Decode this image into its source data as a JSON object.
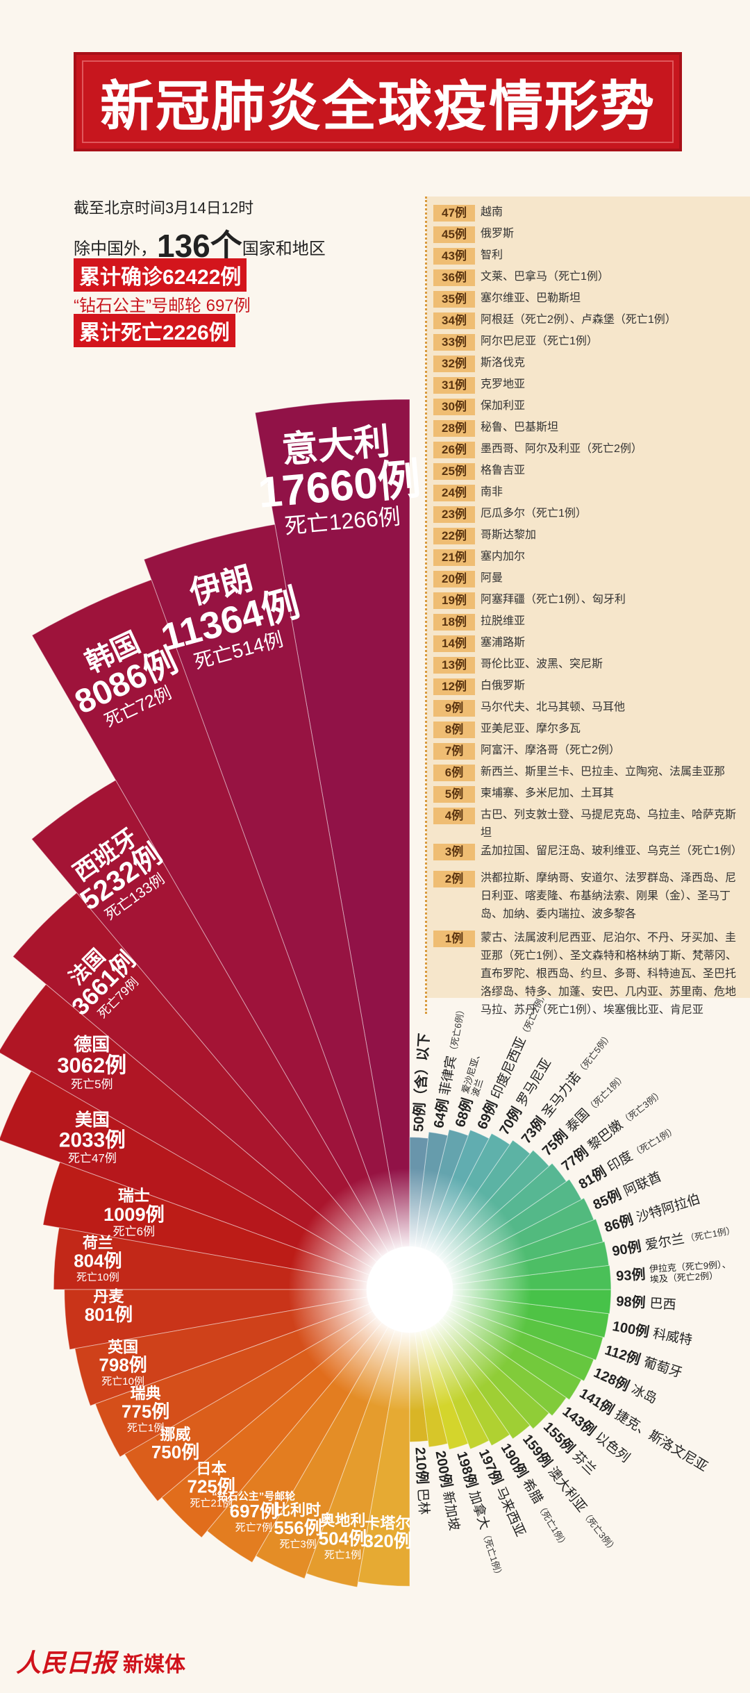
{
  "header": {
    "title": "新冠肺炎全球疫情形势"
  },
  "summary": {
    "date": "截至北京时间3月14日12时",
    "prefix": "除中国外，",
    "count": "136个",
    "suffix": "国家和地区",
    "confirmed": "累计确诊62422例",
    "cruise": "“钻石公主”号邮轮 697例",
    "deaths": "累计死亡2226例"
  },
  "list": [
    {
      "count": "47例",
      "places": "越南"
    },
    {
      "count": "45例",
      "places": "俄罗斯"
    },
    {
      "count": "43例",
      "places": "智利"
    },
    {
      "count": "36例",
      "places": "文莱、巴拿马（死亡1例）"
    },
    {
      "count": "35例",
      "places": "塞尔维亚、巴勒斯坦"
    },
    {
      "count": "34例",
      "places": "阿根廷（死亡2例）、卢森堡（死亡1例）"
    },
    {
      "count": "33例",
      "places": "阿尔巴尼亚（死亡1例）"
    },
    {
      "count": "32例",
      "places": "斯洛伐克"
    },
    {
      "count": "31例",
      "places": "克罗地亚"
    },
    {
      "count": "30例",
      "places": "保加利亚"
    },
    {
      "count": "28例",
      "places": "秘鲁、巴基斯坦"
    },
    {
      "count": "26例",
      "places": "墨西哥、阿尔及利亚（死亡2例）"
    },
    {
      "count": "25例",
      "places": "格鲁吉亚"
    },
    {
      "count": "24例",
      "places": "南非"
    },
    {
      "count": "23例",
      "places": "厄瓜多尔（死亡1例）"
    },
    {
      "count": "22例",
      "places": "哥斯达黎加"
    },
    {
      "count": "21例",
      "places": "塞内加尔"
    },
    {
      "count": "20例",
      "places": "阿曼"
    },
    {
      "count": "19例",
      "places": "阿塞拜疆（死亡1例）、匈牙利"
    },
    {
      "count": "18例",
      "places": "拉脱维亚"
    },
    {
      "count": "14例",
      "places": "塞浦路斯"
    },
    {
      "count": "13例",
      "places": "哥伦比亚、波黑、突尼斯"
    },
    {
      "count": "12例",
      "places": "白俄罗斯"
    },
    {
      "count": "9例",
      "places": "马尔代夫、北马其顿、马耳他"
    },
    {
      "count": "8例",
      "places": "亚美尼亚、摩尔多瓦"
    },
    {
      "count": "7例",
      "places": "阿富汗、摩洛哥（死亡2例）"
    },
    {
      "count": "6例",
      "places": "新西兰、斯里兰卡、巴拉圭、立陶宛、法属圭亚那"
    },
    {
      "count": "5例",
      "places": "柬埔寨、多米尼加、土耳其"
    },
    {
      "count": "4例",
      "places": "古巴、列支敦士登、马提尼克岛、乌拉圭、哈萨克斯坦"
    },
    {
      "count": "3例",
      "places": "孟加拉国、留尼汪岛、玻利维亚、乌克兰（死亡1例）"
    },
    {
      "count": "2例",
      "places": "洪都拉斯、摩纳哥、安道尔、法罗群岛、泽西岛、尼日利亚、喀麦隆、布基纳法索、刚果（金）、圣马丁岛、加纳、委内瑞拉、波多黎各"
    },
    {
      "count": "1例",
      "places": "蒙古、法属波利尼西亚、尼泊尔、不丹、牙买加、圭亚那（死亡1例）、圣文森特和格林纳丁斯、梵蒂冈、直布罗陀、根西岛、约旦、多哥、科特迪瓦、圣巴托洛缪岛、特多、加蓬、安巴、几内亚、苏里南、危地马拉、苏丹（死亡1例）、埃塞俄比亚、肯尼亚"
    }
  ],
  "rose": {
    "left": [
      {
        "name": "意大利",
        "cases": "17660例",
        "deaths": "死亡1266例"
      },
      {
        "name": "伊朗",
        "cases": "11364例",
        "deaths": "死亡514例"
      },
      {
        "name": "韩国",
        "cases": "8086例",
        "deaths": "死亡72例"
      },
      {
        "name": "西班牙",
        "cases": "5232例",
        "deaths": "死亡133例"
      },
      {
        "name": "法国",
        "cases": "3661例",
        "deaths": "死亡79例"
      },
      {
        "name": "德国",
        "cases": "3062例",
        "deaths": "死亡5例"
      },
      {
        "name": "美国",
        "cases": "2033例",
        "deaths": "死亡47例"
      },
      {
        "name": "瑞士",
        "cases": "1009例",
        "deaths": "死亡6例"
      },
      {
        "name": "荷兰",
        "cases": "804例",
        "deaths": "死亡10例"
      },
      {
        "name": "丹麦",
        "cases": "801例"
      },
      {
        "name": "英国",
        "cases": "798例",
        "deaths": "死亡10例"
      },
      {
        "name": "瑞典",
        "cases": "775例",
        "deaths": "死亡1例"
      },
      {
        "name": "挪威",
        "cases": "750例"
      },
      {
        "name": "日本",
        "cases": "725例",
        "deaths": "死亡21例"
      },
      {
        "name": "“钻石公主”号邮轮",
        "cases": "697例",
        "deaths": "死亡7例"
      },
      {
        "name": "比利时",
        "cases": "556例",
        "deaths": "死亡3例"
      },
      {
        "name": "奥地利",
        "cases": "504例",
        "deaths": "死亡1例"
      },
      {
        "name": "卡塔尔",
        "cases": "320例"
      }
    ],
    "right": [
      {
        "cases": "210例",
        "name": "巴林"
      },
      {
        "cases": "200例",
        "name": "新加坡"
      },
      {
        "cases": "198例",
        "name": "加拿大",
        "deaths": "（死亡1例）"
      },
      {
        "cases": "197例",
        "name": "马来西亚"
      },
      {
        "cases": "190例",
        "name": "希腊",
        "deaths": "（死亡1例）"
      },
      {
        "cases": "159例",
        "name": "澳大利亚",
        "deaths": "（死亡3例）"
      },
      {
        "cases": "155例",
        "name": "芬兰"
      },
      {
        "cases": "143例",
        "name": "以色列"
      },
      {
        "cases": "141例",
        "name": "捷克、斯洛文尼亚"
      },
      {
        "cases": "128例",
        "name": "冰岛"
      },
      {
        "cases": "112例",
        "name": "葡萄牙"
      },
      {
        "cases": "100例",
        "name": "科威特"
      },
      {
        "cases": "98例",
        "name": "巴西"
      },
      {
        "cases": "93例",
        "name": [
          "伊拉克（死亡9例）、",
          "埃及（死亡2例）"
        ]
      },
      {
        "cases": "90例",
        "name": "爱尔兰",
        "deaths": "（死亡1例）"
      },
      {
        "cases": "86例",
        "name": "沙特阿拉伯"
      },
      {
        "cases": "85例",
        "name": "阿联酋"
      },
      {
        "cases": "81例",
        "name": "印度",
        "deaths": "（死亡1例）"
      },
      {
        "cases": "77例",
        "name": "黎巴嫩",
        "deaths": "（死亡3例）"
      },
      {
        "cases": "75例",
        "name": "泰国",
        "deaths": "（死亡1例）"
      },
      {
        "cases": "73例",
        "name": "圣马力诺",
        "deaths": "（死亡5例）"
      },
      {
        "cases": "70例",
        "name": "罗马尼亚"
      },
      {
        "cases": "69例",
        "name": "印度尼西亚",
        "deaths": "（死亡2例）"
      },
      {
        "cases": "68例",
        "name": [
          "爱沙尼亚、",
          "波兰"
        ]
      },
      {
        "cases": "64例",
        "name": "菲律宾",
        "deaths": "（死亡6例）"
      },
      {
        "cases": "50例（含）以下"
      }
    ]
  },
  "footer": {
    "logo": "人民日报",
    "suffix": "新媒体"
  }
}
